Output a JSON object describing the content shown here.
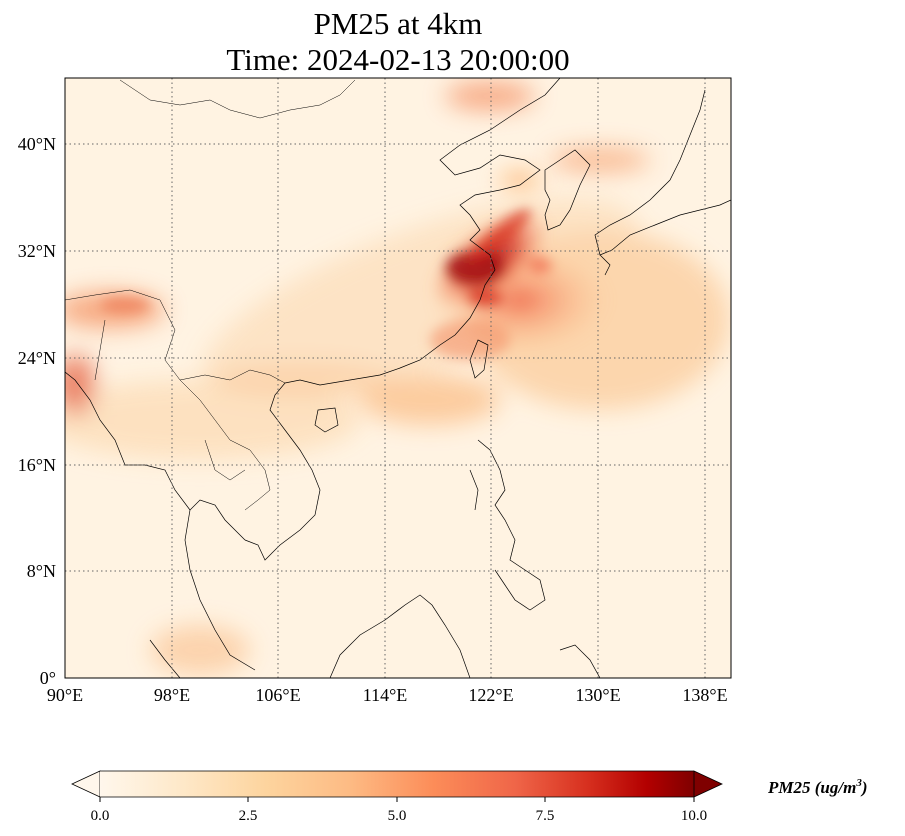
{
  "title": {
    "line1": "PM25 at 4km",
    "line2": "Time: 2024-02-13 20:00:00"
  },
  "map": {
    "lon_ticks": [
      "90°E",
      "98°E",
      "106°E",
      "114°E",
      "122°E",
      "130°E",
      "138°E"
    ],
    "lat_ticks": [
      "0°",
      "8°N",
      "16°N",
      "24°N",
      "32°N",
      "40°N"
    ],
    "lon_range": [
      90,
      140
    ],
    "lat_range": [
      0,
      45
    ],
    "grid": "dotted"
  },
  "colorbar": {
    "ticks": [
      "0.0",
      "2.5",
      "5.0",
      "7.5",
      "10.0"
    ],
    "range": [
      0,
      10
    ],
    "label": "PM25 (ug/m",
    "label_sup": "3",
    "label_end": ")",
    "colormap": "OrRd",
    "extend": "both"
  },
  "colors": {
    "low": "#fff7ec",
    "mid": "#fdbb84",
    "high": "#7f0000"
  }
}
